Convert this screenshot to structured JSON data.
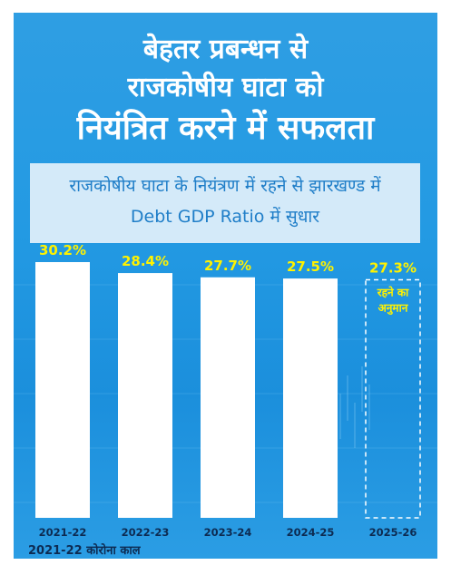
{
  "header": {
    "title_lines": [
      "बेहतर प्रबन्धन से",
      "राजकोषीय घाटा को",
      "नियंत्रित करने में सफलता"
    ]
  },
  "subtitle": {
    "line1": "राजकोषीय घाटा के नियंत्रण में रहने से झारखण्ड में",
    "line2": "Debt GDP Ratio में सुधार"
  },
  "footnote": "2021-22 कोरोना काल",
  "colors": {
    "panel_blue": "#239ae3",
    "bar_white": "#ffffff",
    "value_label_yellow": "#fff200",
    "subtitle_box": "#d4eaf9"
  },
  "chart_data": {
    "type": "bar",
    "title": "",
    "xlabel": "",
    "ylabel": "",
    "categories": [
      "2021-22",
      "2022-23",
      "2023-24",
      "2024-25",
      "2025-26"
    ],
    "values": [
      30.2,
      28.4,
      27.7,
      27.5,
      27.3
    ],
    "value_labels": [
      "30.2%",
      "28.4%",
      "27.7%",
      "27.5%",
      "27.3%"
    ],
    "estimated": [
      false,
      false,
      false,
      false,
      true
    ],
    "estimate_note_lines": [
      "रहने का",
      "अनुमान"
    ],
    "grid": false,
    "legend": "none"
  }
}
